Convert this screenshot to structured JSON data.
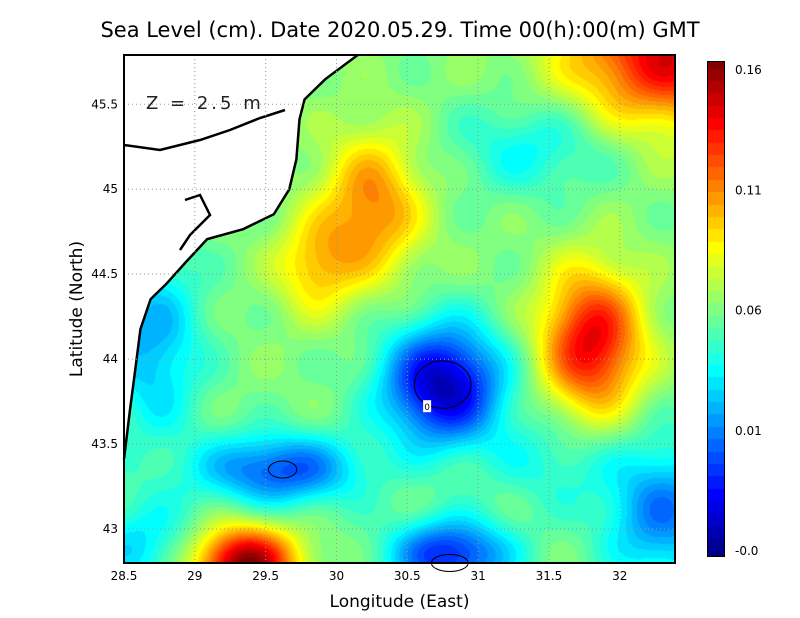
{
  "chart_data": {
    "type": "heatmap",
    "title": "Sea Level (cm). Date 2020.05.29. Time 00(h):00(m) GMT",
    "xlabel": "Longitude (East)",
    "ylabel": "Latitude (North)",
    "annotation": "Z = 2.5 m",
    "xlim": [
      28.5,
      32.39
    ],
    "ylim": [
      42.8,
      45.79
    ],
    "xticks": [
      28.5,
      29,
      29.5,
      30,
      30.5,
      31,
      31.5,
      32
    ],
    "xtick_labels": [
      "28.5",
      "29",
      "29.5",
      "30",
      "30.5",
      "31",
      "31.5",
      "32"
    ],
    "yticks": [
      43,
      43.5,
      44,
      44.5,
      45,
      45.5
    ],
    "ytick_labels": [
      "43",
      "43.5",
      "44",
      "44.5",
      "45",
      "45.5"
    ],
    "grid": true,
    "colorbar": {
      "range": [
        -0.04,
        0.16
      ],
      "tick_labels": [
        "-0.0",
        "0.01",
        "0.06",
        "0.11",
        "0.16"
      ],
      "colormap": "jet"
    },
    "field": {
      "base": 0.06,
      "features": [
        {
          "lon": 30.25,
          "lat": 44.9,
          "amp": 0.05,
          "sx": 0.25,
          "sy": 0.3
        },
        {
          "lon": 29.85,
          "lat": 44.55,
          "amp": 0.035,
          "sx": 0.2,
          "sy": 0.2
        },
        {
          "lon": 31.8,
          "lat": 44.1,
          "amp": 0.08,
          "sx": 0.25,
          "sy": 0.3
        },
        {
          "lon": 32.35,
          "lat": 45.8,
          "amp": 0.08,
          "sx": 0.5,
          "sy": 0.3
        },
        {
          "lon": 29.35,
          "lat": 42.8,
          "amp": 0.1,
          "sx": 0.25,
          "sy": 0.15
        },
        {
          "lon": 30.75,
          "lat": 43.85,
          "amp": -0.09,
          "sx": 0.3,
          "sy": 0.25
        },
        {
          "lon": 29.6,
          "lat": 43.35,
          "amp": -0.06,
          "sx": 0.4,
          "sy": 0.15
        },
        {
          "lon": 30.8,
          "lat": 42.85,
          "amp": -0.07,
          "sx": 0.3,
          "sy": 0.15
        },
        {
          "lon": 28.7,
          "lat": 44.1,
          "amp": -0.04,
          "sx": 0.25,
          "sy": 0.4
        },
        {
          "lon": 31.4,
          "lat": 45.25,
          "amp": -0.025,
          "sx": 0.4,
          "sy": 0.2
        },
        {
          "lon": 32.3,
          "lat": 43.1,
          "amp": -0.05,
          "sx": 0.3,
          "sy": 0.3
        },
        {
          "lon": 28.6,
          "lat": 42.9,
          "amp": -0.03,
          "sx": 0.3,
          "sy": 0.2
        },
        {
          "lon": 31.5,
          "lat": 43.4,
          "amp": -0.02,
          "sx": 0.3,
          "sy": 0.2
        }
      ]
    },
    "contours": [
      {
        "label": "0",
        "lon": 30.75,
        "lat": 43.85,
        "rx": 0.2,
        "ry": 0.14
      },
      {
        "lon": 29.62,
        "lat": 43.35,
        "rx": 0.1,
        "ry": 0.05
      },
      {
        "lon": 30.8,
        "lat": 42.8,
        "rx": 0.13,
        "ry": 0.05
      }
    ],
    "coastline": [
      [
        30.15,
        45.79
      ],
      [
        29.92,
        45.647
      ],
      [
        29.775,
        45.529
      ],
      [
        29.739,
        45.412
      ],
      [
        29.717,
        45.176
      ],
      [
        29.667,
        45.0
      ],
      [
        29.558,
        44.853
      ],
      [
        29.341,
        44.765
      ],
      [
        29.087,
        44.706
      ],
      [
        28.942,
        44.576
      ],
      [
        28.797,
        44.441
      ],
      [
        28.688,
        44.353
      ],
      [
        28.616,
        44.176
      ],
      [
        28.58,
        43.941
      ],
      [
        28.543,
        43.706
      ],
      [
        28.5,
        43.412
      ]
    ]
  }
}
